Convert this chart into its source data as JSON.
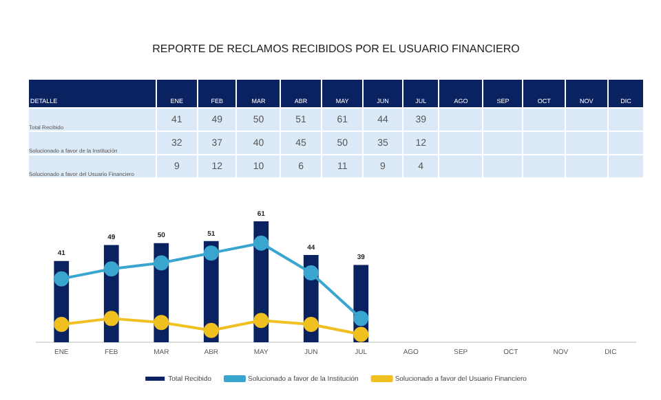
{
  "chart_data": [
    {
      "type": "heatmap",
      "title": "REPORTE DE RECLAMOS RECIBIDOS POR EL USUARIO FINANCIERO",
      "annotations": [
        "DETALLE"
      ],
      "categories": [
        "ENE",
        "FEB",
        "MAR",
        "ABR",
        "MAY",
        "JUN",
        "JUL",
        "AGO",
        "SEP",
        "OCT",
        "NOV",
        "DIC"
      ],
      "y_categories": [
        "Total Recibido",
        "Solucionado a favor de la Institución",
        "Solucionado a favor del Usuario Financiero"
      ],
      "cells": [
        [
          41,
          49,
          50,
          51,
          61,
          44,
          39,
          null,
          null,
          null,
          null,
          null
        ],
        [
          32,
          37,
          40,
          45,
          50,
          35,
          12,
          null,
          null,
          null,
          null,
          null
        ],
        [
          9,
          12,
          10,
          6,
          11,
          9,
          4,
          null,
          null,
          null,
          null,
          null
        ]
      ],
      "data_labels": true
    },
    {
      "type": "bar",
      "categories": [
        "ENE",
        "FEB",
        "MAR",
        "ABR",
        "MAY",
        "JUN",
        "JUL",
        "AGO",
        "SEP",
        "OCT",
        "NOV",
        "DIC"
      ],
      "series": [
        {
          "name": "Total Recibido",
          "type": "bar",
          "color": "#0b2260",
          "values": [
            41,
            49,
            50,
            51,
            61,
            44,
            39,
            null,
            null,
            null,
            null,
            null
          ],
          "value_labels": [
            "41",
            "49",
            "50",
            "51",
            "61",
            "44",
            "39",
            null,
            null,
            null,
            null,
            null
          ]
        },
        {
          "name": "Solucionado a favor de la Institución",
          "type": "line",
          "color": "#3aa6cf",
          "values": [
            32,
            37,
            40,
            45,
            50,
            35,
            12,
            null,
            null,
            null,
            null,
            null
          ]
        },
        {
          "name": "Solucionado a favor del Usuario Financiero",
          "type": "line",
          "color": "#f0c020",
          "values": [
            9,
            12,
            10,
            6,
            11,
            9,
            4,
            null,
            null,
            null,
            null,
            null
          ]
        }
      ],
      "legend": "bottom",
      "marker": "circle",
      "grid": false
    }
  ]
}
